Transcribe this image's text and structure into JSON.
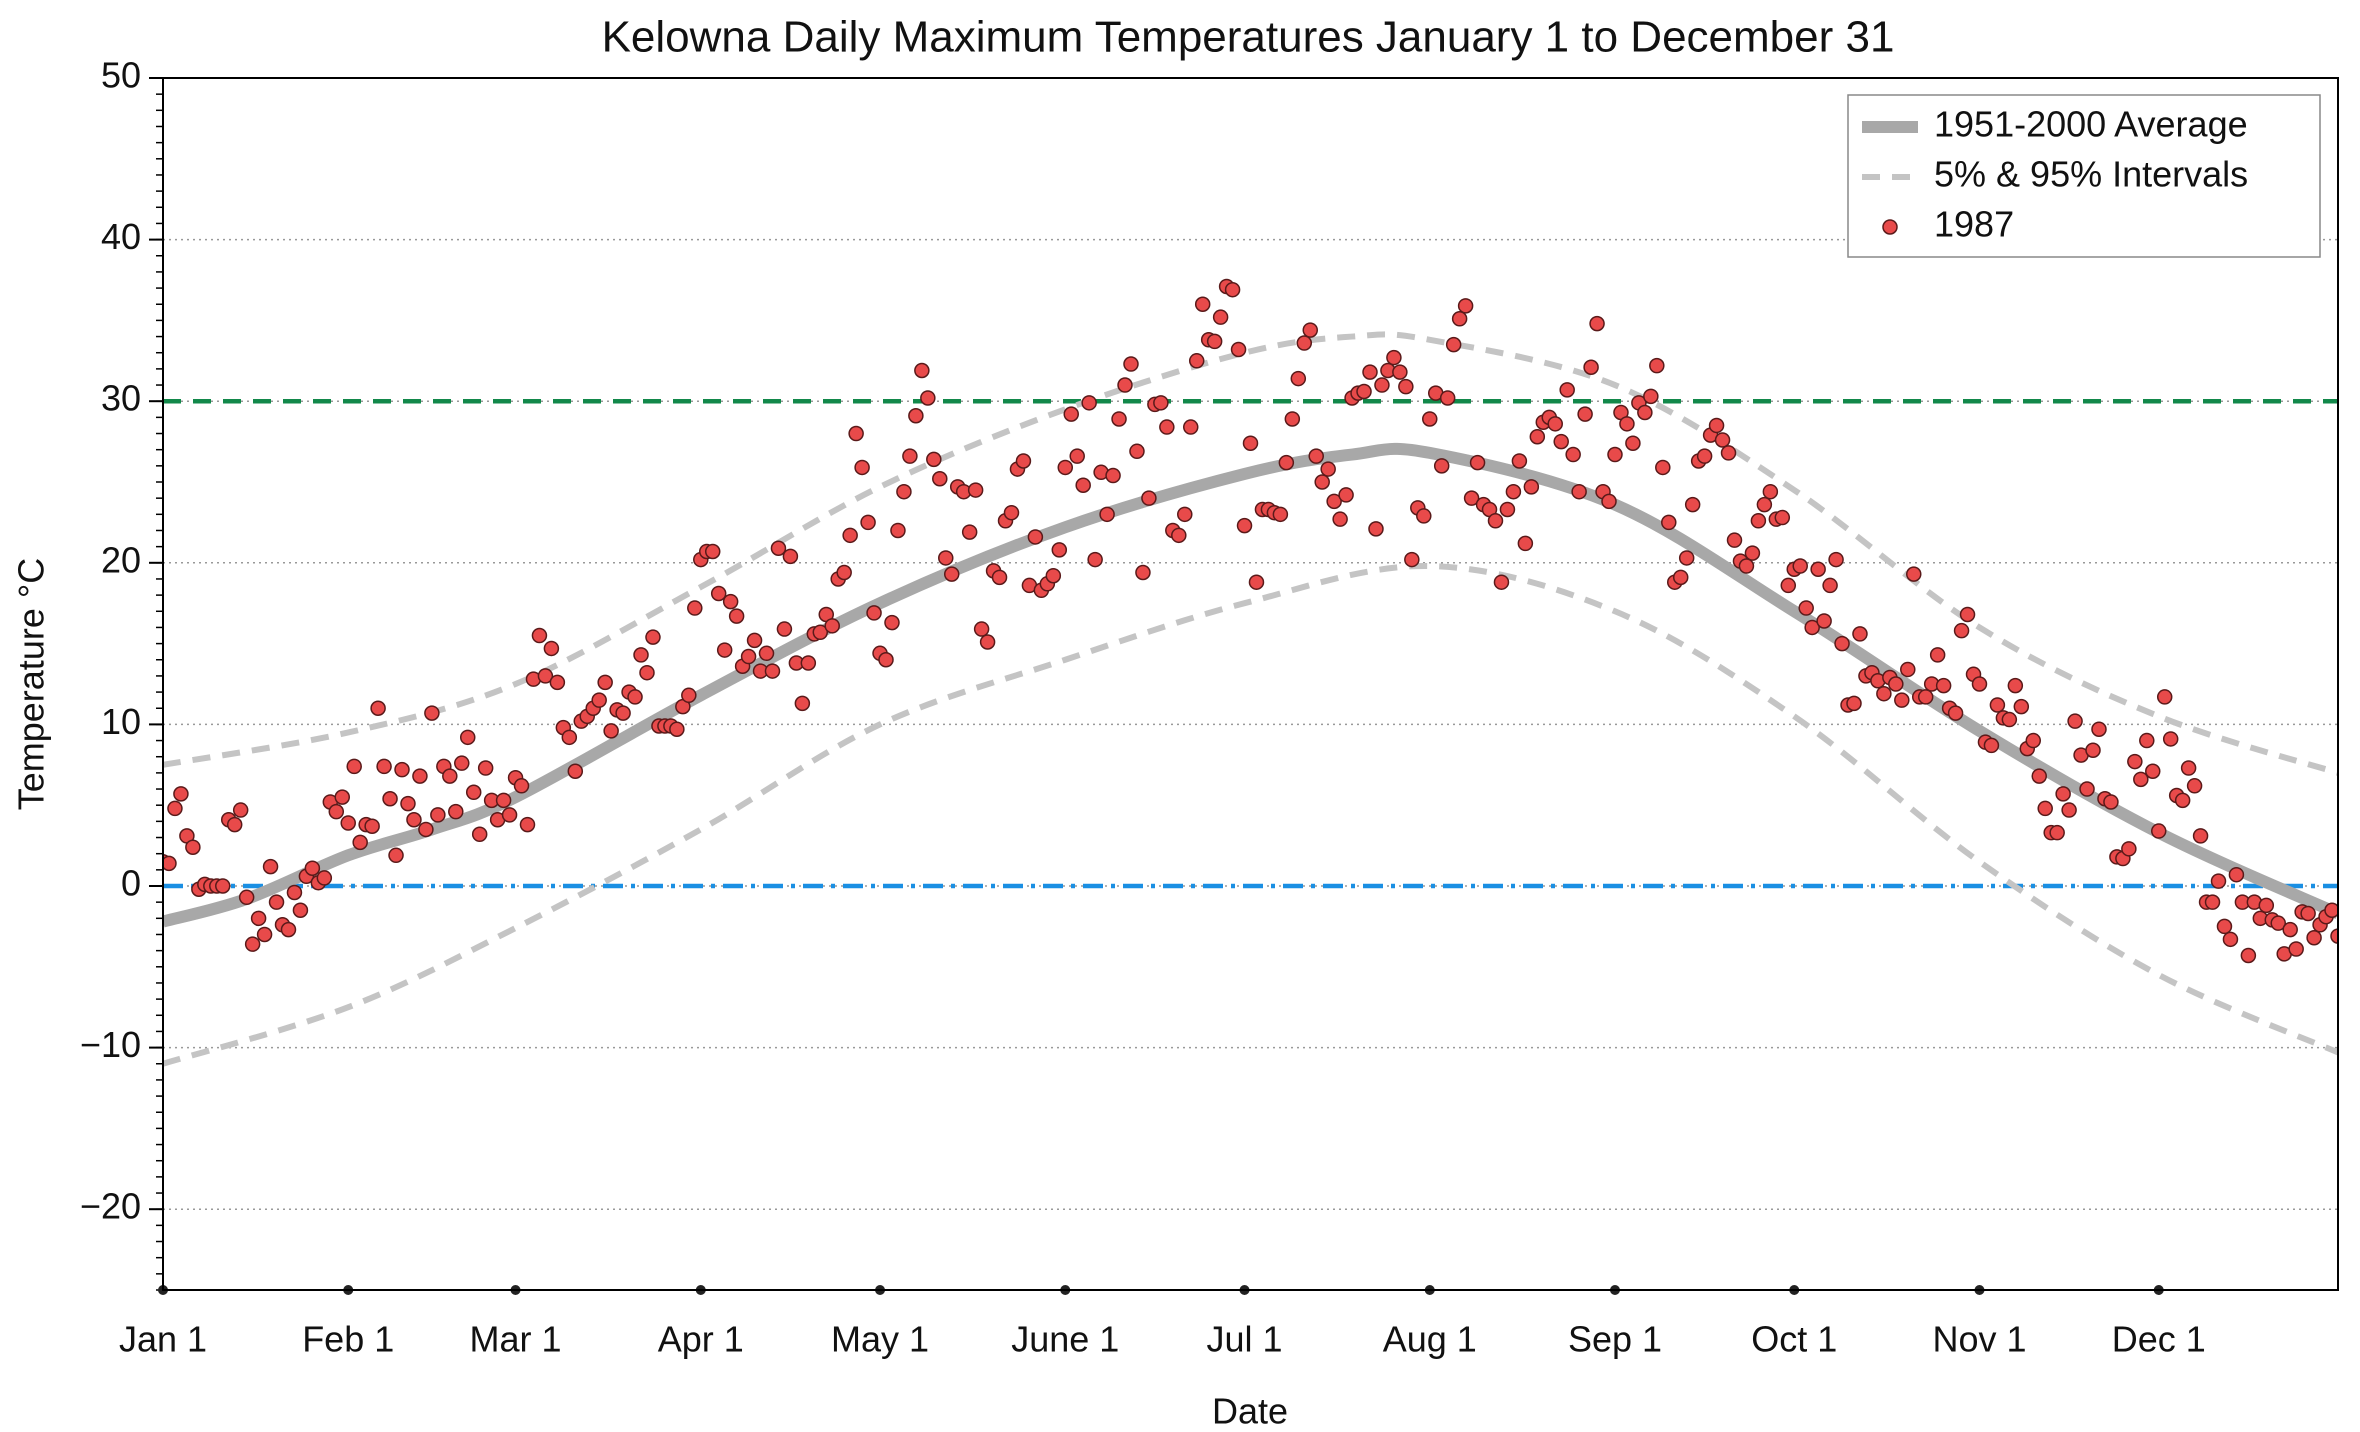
{
  "chart_data": {
    "type": "line",
    "title": "Kelowna Daily Maximum Temperatures January 1 to December 31",
    "xlabel": "Date",
    "ylabel": "Temperature °C",
    "xlim": [
      1,
      365
    ],
    "ylim": [
      -25,
      50
    ],
    "xticks": [
      {
        "value": 1,
        "label": "Jan 1"
      },
      {
        "value": 32,
        "label": "Feb 1"
      },
      {
        "value": 60,
        "label": "Mar 1"
      },
      {
        "value": 91,
        "label": "Apr 1"
      },
      {
        "value": 121,
        "label": "May 1"
      },
      {
        "value": 152,
        "label": "June 1"
      },
      {
        "value": 182,
        "label": "Jul 1"
      },
      {
        "value": 213,
        "label": "Aug 1"
      },
      {
        "value": 244,
        "label": "Sep 1"
      },
      {
        "value": 274,
        "label": "Oct 1"
      },
      {
        "value": 305,
        "label": "Nov 1"
      },
      {
        "value": 335,
        "label": "Dec 1"
      }
    ],
    "yticks": [
      {
        "value": -20,
        "label": "−20"
      },
      {
        "value": -10,
        "label": "−10"
      },
      0,
      10,
      20,
      30,
      40,
      50
    ],
    "yminor": 1,
    "grid": true,
    "legend": "upper right",
    "hlines": [
      {
        "value": 30,
        "color": "#12884a",
        "style": "dashed"
      },
      {
        "value": 0,
        "color": "#1a8fe3",
        "style": "dashdot"
      }
    ],
    "series": [
      {
        "name": "1951-2000 Average",
        "kind": "line",
        "style": "solid",
        "color": "#a8a8a8",
        "x": [
          1,
          15,
          32,
          46,
          60,
          91,
          121,
          152,
          182,
          200,
          213,
          244,
          274,
          305,
          335,
          365
        ],
        "values": [
          -2.2,
          -0.8,
          1.9,
          3.5,
          5.5,
          11.8,
          17.5,
          22.2,
          25.5,
          26.7,
          26.8,
          23.6,
          17,
          9.6,
          3.3,
          -1.7
        ]
      },
      {
        "name": "5% & 95% Intervals",
        "kind": "line",
        "style": "dashed",
        "color": "#c4c4c4",
        "x": [
          1,
          32,
          60,
          91,
          121,
          152,
          182,
          200,
          213,
          244,
          274,
          305,
          335,
          365
        ],
        "values": [
          7.5,
          9.5,
          12.5,
          18.5,
          24.7,
          29.5,
          33,
          34,
          33.8,
          31,
          24.5,
          16,
          10.5,
          7
        ]
      },
      {
        "kind": "line",
        "style": "dashed",
        "color": "#c4c4c4",
        "x": [
          1,
          32,
          60,
          91,
          121,
          152,
          182,
          213,
          244,
          274,
          305,
          335,
          365
        ],
        "values": [
          -11,
          -7.5,
          -2.6,
          3.5,
          10,
          14,
          17.5,
          19.8,
          17,
          10.5,
          1.5,
          -5.5,
          -10.3
        ]
      },
      {
        "name": "1987",
        "kind": "scatter",
        "color": "#e84a4a",
        "x": [
          1,
          2,
          3,
          4,
          5,
          6,
          7,
          8,
          9,
          10,
          11,
          12,
          13,
          14,
          15,
          16,
          17,
          18,
          19,
          20,
          21,
          22,
          23,
          24,
          25,
          26,
          27,
          28,
          29,
          30,
          31,
          32,
          33,
          34,
          35,
          36,
          37,
          38,
          39,
          40,
          41,
          42,
          43,
          44,
          45,
          46,
          47,
          48,
          49,
          50,
          51,
          52,
          53,
          54,
          55,
          56,
          57,
          58,
          59,
          60,
          61,
          62,
          63,
          64,
          65,
          66,
          67,
          68,
          69,
          70,
          71,
          72,
          73,
          74,
          75,
          76,
          77,
          78,
          79,
          80,
          81,
          82,
          83,
          84,
          85,
          86,
          87,
          88,
          89,
          90,
          91,
          92,
          93,
          94,
          95,
          96,
          97,
          98,
          99,
          100,
          101,
          102,
          103,
          104,
          105,
          106,
          107,
          108,
          109,
          110,
          111,
          112,
          113,
          114,
          115,
          116,
          117,
          118,
          119,
          120,
          121,
          122,
          123,
          124,
          125,
          126,
          127,
          128,
          129,
          130,
          131,
          132,
          133,
          134,
          135,
          136,
          137,
          138,
          139,
          140,
          141,
          142,
          143,
          144,
          145,
          146,
          147,
          148,
          149,
          150,
          151,
          152,
          153,
          154,
          155,
          156,
          157,
          158,
          159,
          160,
          161,
          162,
          163,
          164,
          165,
          166,
          167,
          168,
          169,
          170,
          171,
          172,
          173,
          174,
          175,
          176,
          177,
          178,
          179,
          180,
          181,
          182,
          183,
          184,
          185,
          186,
          187,
          188,
          189,
          190,
          191,
          192,
          193,
          194,
          195,
          196,
          197,
          198,
          199,
          200,
          201,
          202,
          203,
          204,
          205,
          206,
          207,
          208,
          209,
          210,
          211,
          212,
          213,
          214,
          215,
          216,
          217,
          218,
          219,
          220,
          221,
          222,
          223,
          224,
          225,
          226,
          227,
          228,
          229,
          230,
          231,
          232,
          233,
          234,
          235,
          236,
          237,
          238,
          239,
          240,
          241,
          242,
          243,
          244,
          245,
          246,
          247,
          248,
          249,
          250,
          251,
          252,
          253,
          254,
          255,
          256,
          257,
          258,
          259,
          260,
          261,
          262,
          263,
          264,
          265,
          266,
          267,
          268,
          269,
          270,
          271,
          272,
          273,
          274,
          275,
          276,
          277,
          278,
          279,
          280,
          281,
          282,
          283,
          284,
          285,
          286,
          287,
          288,
          289,
          290,
          291,
          292,
          293,
          294,
          295,
          296,
          297,
          298,
          299,
          300,
          301,
          302,
          303,
          304,
          305,
          306,
          307,
          308,
          309,
          310,
          311,
          312,
          313,
          314,
          315,
          316,
          317,
          318,
          319,
          320,
          321,
          322,
          323,
          324,
          325,
          326,
          327,
          328,
          329,
          330,
          331,
          332,
          333,
          334,
          335,
          336,
          337,
          338,
          339,
          340,
          341,
          342,
          343,
          344,
          345,
          346,
          347,
          348,
          349,
          350,
          351,
          352,
          353,
          354,
          355,
          356,
          357,
          358,
          359,
          360,
          361,
          362,
          363,
          364,
          365
        ],
        "values": [
          1.5,
          1.4,
          4.8,
          5.7,
          3.1,
          2.4,
          -0.2,
          0.1,
          0,
          0,
          0,
          4.1,
          3.8,
          4.7,
          -0.7,
          -3.6,
          -2,
          -3,
          1.2,
          -1,
          -2.4,
          -2.7,
          -0.4,
          -1.5,
          0.6,
          1.1,
          0.2,
          0.5,
          5.2,
          4.6,
          5.5,
          3.9,
          7.4,
          2.7,
          3.8,
          3.7,
          11,
          7.4,
          5.4,
          1.9,
          7.2,
          5.1,
          4.1,
          6.8,
          3.5,
          10.7,
          4.4,
          7.4,
          6.8,
          4.6,
          7.6,
          9.2,
          5.8,
          3.2,
          7.3,
          5.3,
          4.1,
          5.3,
          4.4,
          6.7,
          6.2,
          3.8,
          12.8,
          15.5,
          13,
          14.7,
          12.6,
          9.8,
          9.2,
          7.1,
          10.2,
          10.5,
          11,
          11.5,
          12.6,
          9.6,
          10.9,
          10.7,
          12,
          11.7,
          14.3,
          13.2,
          15.4,
          9.9,
          9.9,
          9.9,
          9.7,
          11.1,
          11.8,
          17.2,
          20.2,
          20.7,
          20.7,
          18.1,
          14.6,
          17.6,
          16.7,
          13.6,
          14.2,
          15.2,
          13.3,
          14.4,
          13.3,
          20.9,
          15.9,
          20.4,
          13.8,
          11.3,
          13.8,
          15.6,
          15.7,
          16.8,
          16.1,
          19,
          19.4,
          21.7,
          28,
          25.9,
          22.5,
          16.9,
          14.4,
          14,
          16.3,
          22,
          24.4,
          26.6,
          29.1,
          31.9,
          30.2,
          26.4,
          25.2,
          20.3,
          19.3,
          24.7,
          24.4,
          21.9,
          24.5,
          15.9,
          15.1,
          19.5,
          19.1,
          22.6,
          23.1,
          25.8,
          26.3,
          18.6,
          21.6,
          18.3,
          18.7,
          19.2,
          20.8,
          25.9,
          29.2,
          26.6,
          24.8,
          29.9,
          20.2,
          25.6,
          23,
          25.4,
          28.9,
          31,
          32.3,
          26.9,
          19.4,
          24,
          29.8,
          29.9,
          28.4,
          22,
          21.7,
          23,
          28.4,
          32.5,
          36,
          33.8,
          33.7,
          35.2,
          37.1,
          36.9,
          33.2,
          22.3,
          27.4,
          18.8,
          23.3,
          23.3,
          23.1,
          23,
          26.2,
          28.9,
          31.4,
          33.6,
          34.4,
          26.6,
          25,
          25.8,
          23.8,
          22.7,
          24.2,
          30.2,
          30.5,
          30.6,
          31.8,
          22.1,
          31,
          31.9,
          32.7,
          31.8,
          30.9,
          20.2,
          23.4,
          22.9,
          28.9,
          30.5,
          26,
          30.2,
          33.5,
          35.1,
          35.9,
          24,
          26.2,
          23.6,
          23.3,
          22.6,
          18.8,
          23.3,
          24.4,
          26.3,
          21.2,
          24.7,
          27.8,
          28.7,
          29,
          28.6,
          27.5,
          30.7,
          26.7,
          24.4,
          29.2,
          32.1,
          34.8,
          24.4,
          23.8,
          26.7,
          29.3,
          28.6,
          27.4,
          29.9,
          29.3,
          30.3,
          32.2,
          25.9,
          22.5,
          18.8,
          19.1,
          20.3,
          23.6,
          26.3,
          26.6,
          27.9,
          28.5,
          27.6,
          26.8,
          21.4,
          20.1,
          19.8,
          20.6,
          22.6,
          23.6,
          24.4,
          22.7,
          22.8,
          18.6,
          19.6,
          19.8,
          17.2,
          16,
          19.6,
          16.4,
          18.6,
          20.2,
          15,
          11.2,
          11.3,
          15.6,
          13,
          13.2,
          12.7,
          11.9,
          12.9,
          12.5,
          11.5,
          13.4,
          19.3,
          11.7,
          11.7,
          12.5,
          14.3,
          12.4,
          11,
          10.7,
          15.8,
          16.8,
          13.1,
          12.5,
          8.9,
          8.7,
          11.2,
          10.4,
          10.3,
          12.4,
          11.1,
          8.5,
          9,
          6.8,
          4.8,
          3.3,
          3.3,
          5.7,
          4.7,
          10.2,
          8.1,
          6,
          8.4,
          9.7,
          5.4,
          5.2,
          1.8,
          1.7,
          2.3,
          7.7,
          6.6,
          9,
          7.1,
          3.4,
          11.7,
          9.1,
          5.6,
          5.3,
          7.3,
          6.2,
          3.1,
          -1,
          -1,
          0.3,
          -2.5,
          -3.3,
          0.7,
          -1,
          -4.3,
          -1,
          -2,
          -1.2,
          -2.1,
          -2.3,
          -4.2,
          -2.7,
          -3.9,
          -1.6,
          -1.7,
          -3.2,
          -2.4,
          -1.9,
          -1.5,
          -3.1
        ]
      }
    ]
  }
}
